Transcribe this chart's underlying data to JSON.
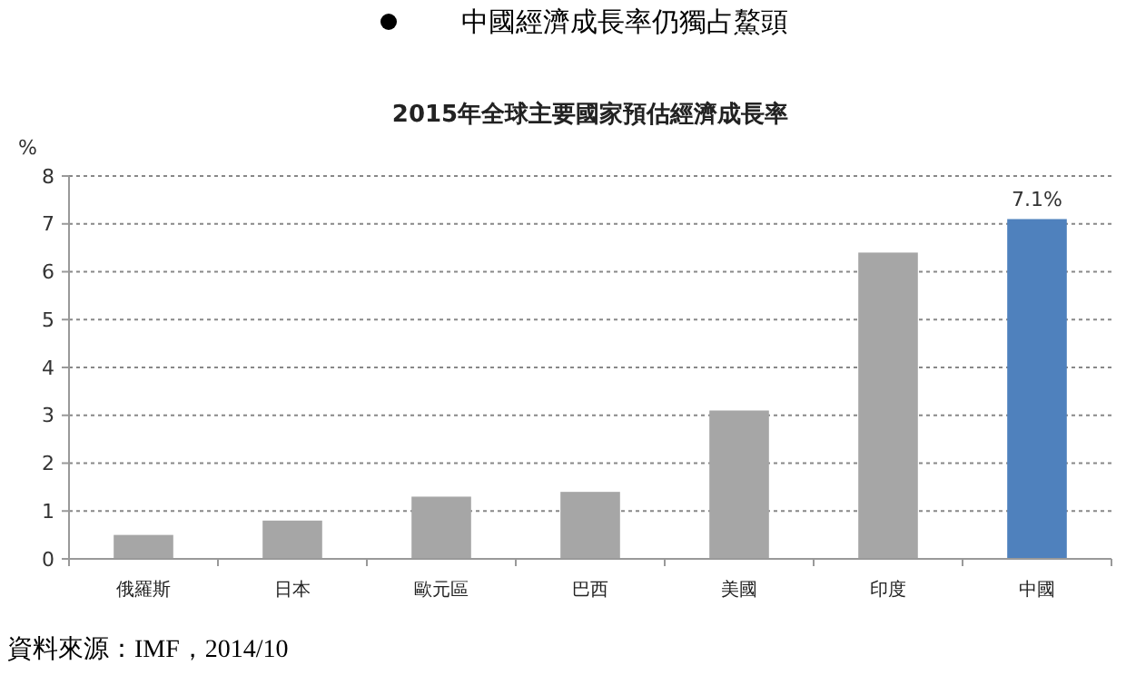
{
  "chart_data": {
    "type": "bar",
    "title": "中國經濟成長率仍獨占鰲頭",
    "subtitle": "2015年全球主要國家預估經濟成長率",
    "ylabel": "%",
    "categories": [
      "俄羅斯",
      "日本",
      "歐元區",
      "巴西",
      "美國",
      "印度",
      "中國"
    ],
    "values": [
      0.5,
      0.8,
      1.3,
      1.4,
      3.1,
      6.4,
      7.1
    ],
    "colors": [
      "#a6a6a6",
      "#a6a6a6",
      "#a6a6a6",
      "#a6a6a6",
      "#a6a6a6",
      "#a6a6a6",
      "#4f81bd"
    ],
    "value_labels": [
      null,
      null,
      null,
      null,
      null,
      null,
      "7.1%"
    ],
    "ylim": [
      0,
      8
    ],
    "yticks": [
      0,
      1,
      2,
      3,
      4,
      5,
      6,
      7,
      8
    ],
    "grid": "y",
    "annotations": [
      "資料來源：IMF，2014/10"
    ]
  }
}
